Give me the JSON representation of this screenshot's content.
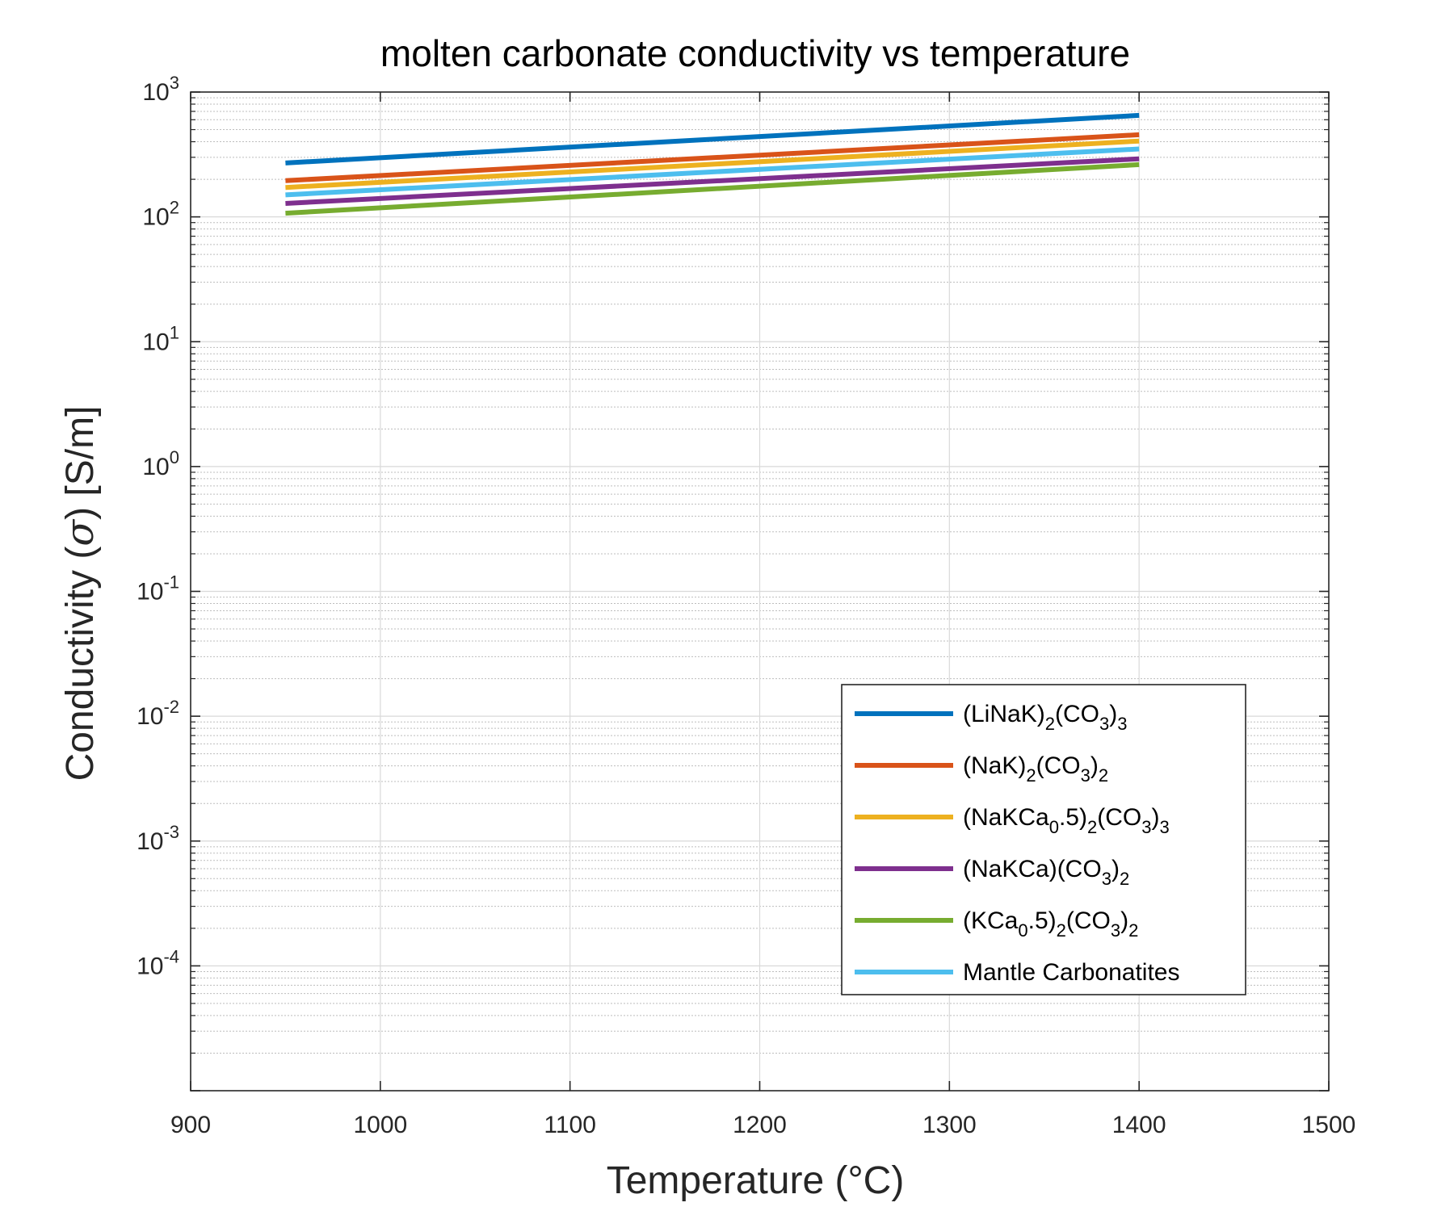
{
  "chart_data": {
    "type": "line",
    "title": "molten carbonate conductivity vs temperature",
    "xlabel": "Temperature (°C)",
    "ylabel": "Conductivity (σ) [S/m]",
    "ylabel_parts": {
      "before": "Conductivity (",
      "symbol": "σ",
      "after": ") [S/m]"
    },
    "xlim": [
      900,
      1500
    ],
    "ylim": [
      1e-05,
      1000
    ],
    "yscale": "log",
    "xticks": [
      900,
      1000,
      1100,
      1200,
      1300,
      1400,
      1500
    ],
    "yticks": [
      {
        "value": 0.0001,
        "base": "10",
        "exp": "-4"
      },
      {
        "value": 0.001,
        "base": "10",
        "exp": "-3"
      },
      {
        "value": 0.01,
        "base": "10",
        "exp": "-2"
      },
      {
        "value": 0.1,
        "base": "10",
        "exp": "-1"
      },
      {
        "value": 1,
        "base": "10",
        "exp": "0"
      },
      {
        "value": 10,
        "base": "10",
        "exp": "1"
      },
      {
        "value": 100,
        "base": "10",
        "exp": "2"
      },
      {
        "value": 1000,
        "base": "10",
        "exp": "3"
      }
    ],
    "grid": true,
    "legend_position": "bottom-right",
    "series": [
      {
        "name": "(LiNaK)2(CO3)3",
        "label_parts": [
          [
            "(LiNaK)",
            ""
          ],
          [
            "2",
            "sub"
          ],
          [
            "(CO",
            ""
          ],
          [
            "3",
            "sub"
          ],
          [
            ")",
            ""
          ],
          [
            "3",
            "sub"
          ]
        ],
        "color": "#0072BD",
        "x": [
          950,
          1400
        ],
        "y": [
          270,
          650
        ]
      },
      {
        "name": "(NaK)2(CO3)2",
        "label_parts": [
          [
            "(NaK)",
            ""
          ],
          [
            "2",
            "sub"
          ],
          [
            "(CO",
            ""
          ],
          [
            "3",
            "sub"
          ],
          [
            ")",
            ""
          ],
          [
            "2",
            "sub"
          ]
        ],
        "color": "#D95319",
        "x": [
          950,
          1400
        ],
        "y": [
          195,
          455
        ]
      },
      {
        "name": "(NaKCa0.5)2(CO3)3",
        "label_parts": [
          [
            "(NaKCa",
            ""
          ],
          [
            "0",
            "sub"
          ],
          [
            ".5)",
            ""
          ],
          [
            "2",
            "sub"
          ],
          [
            "(CO",
            ""
          ],
          [
            "3",
            "sub"
          ],
          [
            ")",
            ""
          ],
          [
            "3",
            "sub"
          ]
        ],
        "color": "#EDB120",
        "x": [
          950,
          1400
        ],
        "y": [
          172,
          405
        ]
      },
      {
        "name": "(NaKCa)(CO3)2",
        "label_parts": [
          [
            "(NaKCa)(CO",
            ""
          ],
          [
            "3",
            "sub"
          ],
          [
            ")",
            ""
          ],
          [
            "2",
            "sub"
          ]
        ],
        "color": "#7E2F8E",
        "x": [
          950,
          1400
        ],
        "y": [
          128,
          292
        ]
      },
      {
        "name": "(KCa0.5)2(CO3)2",
        "label_parts": [
          [
            "(KCa",
            ""
          ],
          [
            "0",
            "sub"
          ],
          [
            ".5)",
            ""
          ],
          [
            "2",
            "sub"
          ],
          [
            "(CO",
            ""
          ],
          [
            "3",
            "sub"
          ],
          [
            ")",
            ""
          ],
          [
            "2",
            "sub"
          ]
        ],
        "color": "#77AC30",
        "x": [
          950,
          1400
        ],
        "y": [
          107,
          262
        ]
      },
      {
        "name": "Mantle Carbonatites",
        "label_parts": [
          [
            "Mantle Carbonatites",
            ""
          ]
        ],
        "color": "#4DBEEE",
        "x": [
          950,
          1400
        ],
        "y": [
          150,
          350
        ]
      }
    ]
  }
}
